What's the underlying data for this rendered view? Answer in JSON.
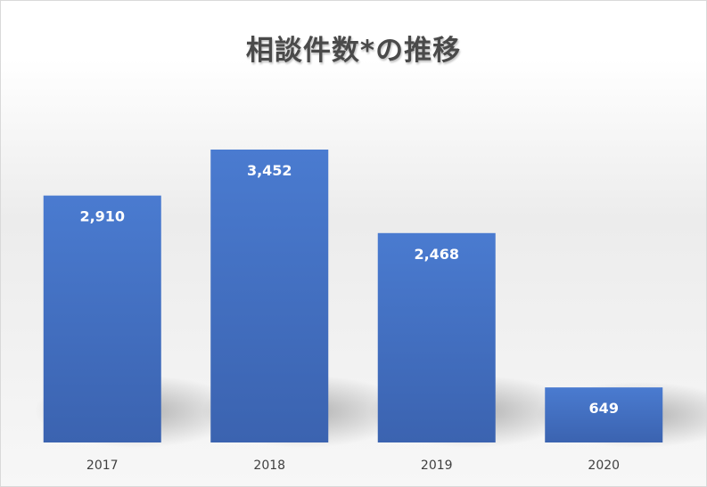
{
  "chart_data": {
    "type": "bar",
    "title": "相談件数*の推移",
    "categories": [
      "2017",
      "2018",
      "2019",
      "2020"
    ],
    "values": [
      2910,
      3452,
      2468,
      649
    ],
    "value_labels": [
      "2,910",
      "3,452",
      "2,468",
      "649"
    ],
    "xlabel": "",
    "ylabel": "",
    "ylim": [
      0,
      3800
    ],
    "grid": false,
    "legend": "none",
    "bar_color": "#4472C4"
  }
}
